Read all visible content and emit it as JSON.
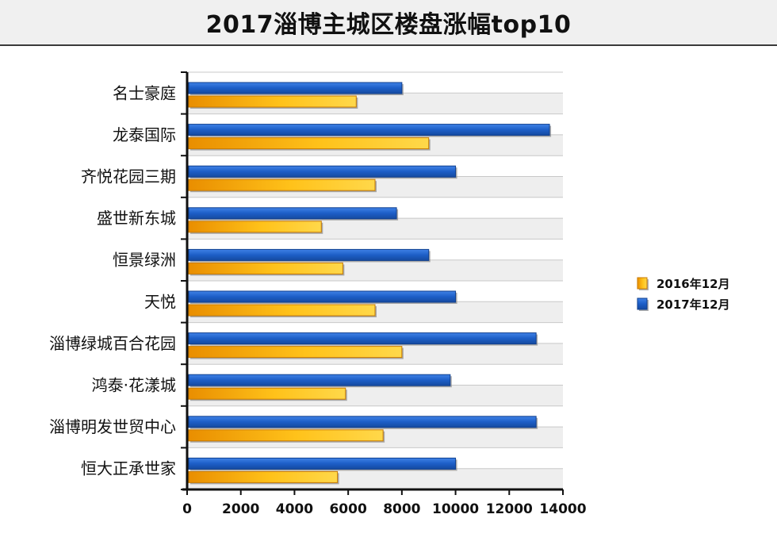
{
  "title": "2017淄博主城区楼盘涨幅top10",
  "chart_data": {
    "type": "bar",
    "orientation": "horizontal",
    "title": "2017淄博主城区楼盘涨幅top10",
    "categories": [
      "名士豪庭",
      "龙泰国际",
      "齐悦花园三期",
      "盛世新东城",
      "恒景绿洲",
      "天悦",
      "淄博绿城百合花园",
      "鸿泰·花漾城",
      "淄博明发世贸中心",
      "恒大正承世家"
    ],
    "series": [
      {
        "name": "2016年12月",
        "color": "#f4a300",
        "values": [
          6300,
          9000,
          7000,
          5000,
          5800,
          7000,
          8000,
          5900,
          7300,
          5600
        ]
      },
      {
        "name": "2017年12月",
        "color": "#1f5bbd",
        "values": [
          8000,
          13500,
          10000,
          7800,
          9000,
          10000,
          13000,
          9800,
          13000,
          10000
        ]
      }
    ],
    "xlabel": "",
    "ylabel": "",
    "xlim": [
      0,
      14000
    ],
    "xticks": [
      "0",
      "2000",
      "4000",
      "6000",
      "8000",
      "10000",
      "12000",
      "14000"
    ],
    "grid": true,
    "legend": "right"
  }
}
